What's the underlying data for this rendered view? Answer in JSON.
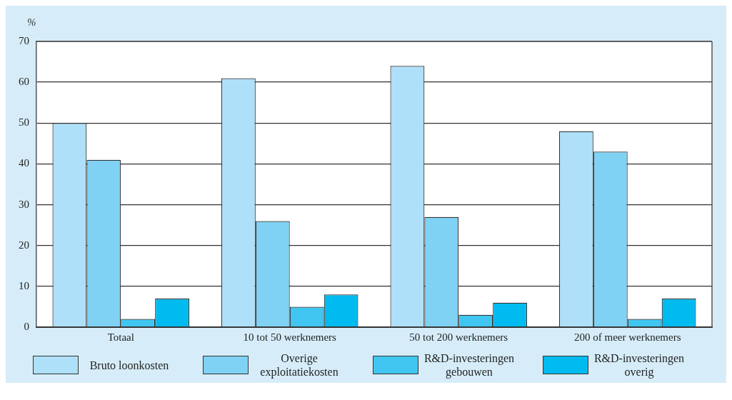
{
  "chart_data": {
    "type": "bar",
    "ylabel": "%",
    "categories": [
      "Totaal",
      "10 tot 50 werknemers",
      "50 tot 200 werknemers",
      "200 of meer werknemers"
    ],
    "series": [
      {
        "name": "Bruto loonkosten",
        "color": "#aee0f9",
        "values": [
          50,
          61,
          64,
          48
        ]
      },
      {
        "name": "Overige exploitatiekosten",
        "color": "#7fd2f4",
        "values": [
          41,
          26,
          27,
          43
        ]
      },
      {
        "name": "R&D-investeringen gebouwen",
        "color": "#40c6f1",
        "values": [
          2,
          5,
          3,
          2
        ]
      },
      {
        "name": "R&D-investeringen overig",
        "color": "#00bbf0",
        "values": [
          7,
          8,
          6,
          7
        ]
      }
    ],
    "ylim": [
      0,
      70
    ],
    "yticks": [
      0,
      10,
      20,
      30,
      40,
      50,
      60,
      70
    ],
    "grid": "y",
    "legend": "bottom"
  }
}
